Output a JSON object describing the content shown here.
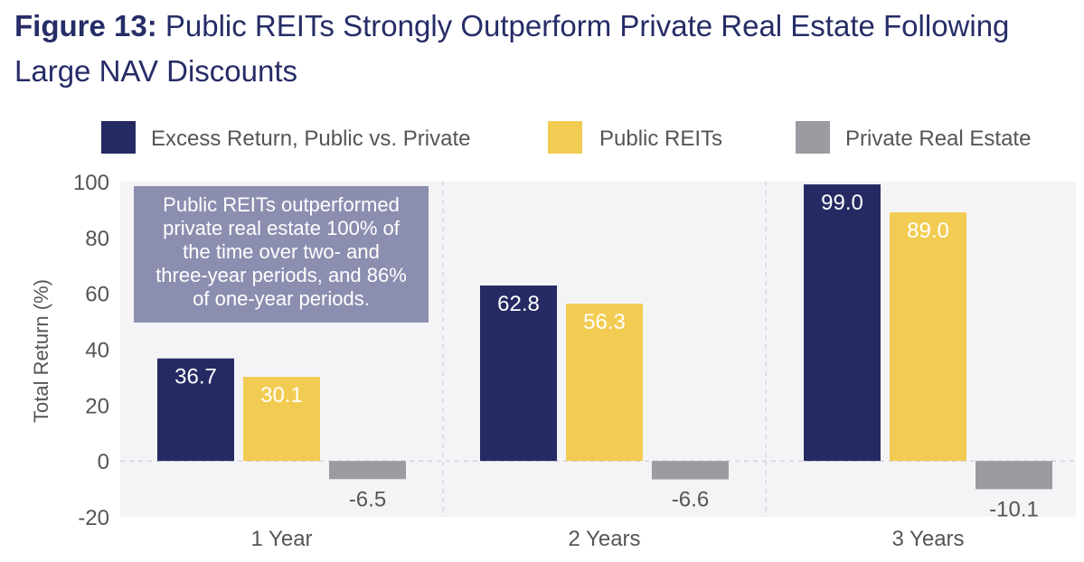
{
  "title_prefix": "Figure 13:",
  "title_rest": "Public REITs Strongly Outperform Private Real Estate Following Large NAV Discounts",
  "callout": {
    "lines": [
      "Public REITs outperformed",
      "private real estate 100% of",
      "the time over two- and",
      "three-year periods, and 86%",
      "of one-year periods."
    ]
  },
  "colors": {
    "title": "#262d67",
    "excess": "#262a63",
    "public": "#f2cc52",
    "private": "#9b9ca2",
    "callout_bg": "#8c8eb0",
    "text": "#555555"
  },
  "chart_data": {
    "type": "bar",
    "title": "Figure 13: Public REITs Strongly Outperform Private Real Estate Following Large NAV Discounts",
    "categories": [
      "1 Year",
      "2 Years",
      "3 Years"
    ],
    "series": [
      {
        "name": "Excess Return, Public vs. Private",
        "values": [
          36.7,
          62.8,
          99.0
        ],
        "labels": [
          "36.7",
          "62.8",
          "99.0"
        ]
      },
      {
        "name": "Public REITs",
        "values": [
          30.1,
          56.3,
          89.0
        ],
        "labels": [
          "30.1",
          "56.3",
          "89.0"
        ]
      },
      {
        "name": "Private Real Estate",
        "values": [
          -6.5,
          -6.6,
          -10.1
        ],
        "labels": [
          "-6.5",
          "-6.6",
          "-10.1"
        ]
      }
    ],
    "ylabel": "Total Return (%)",
    "xlabel": "",
    "ylim": [
      -20,
      100
    ],
    "yticks": [
      100,
      80,
      60,
      40,
      20,
      0,
      -20
    ],
    "legend_position": "top"
  }
}
